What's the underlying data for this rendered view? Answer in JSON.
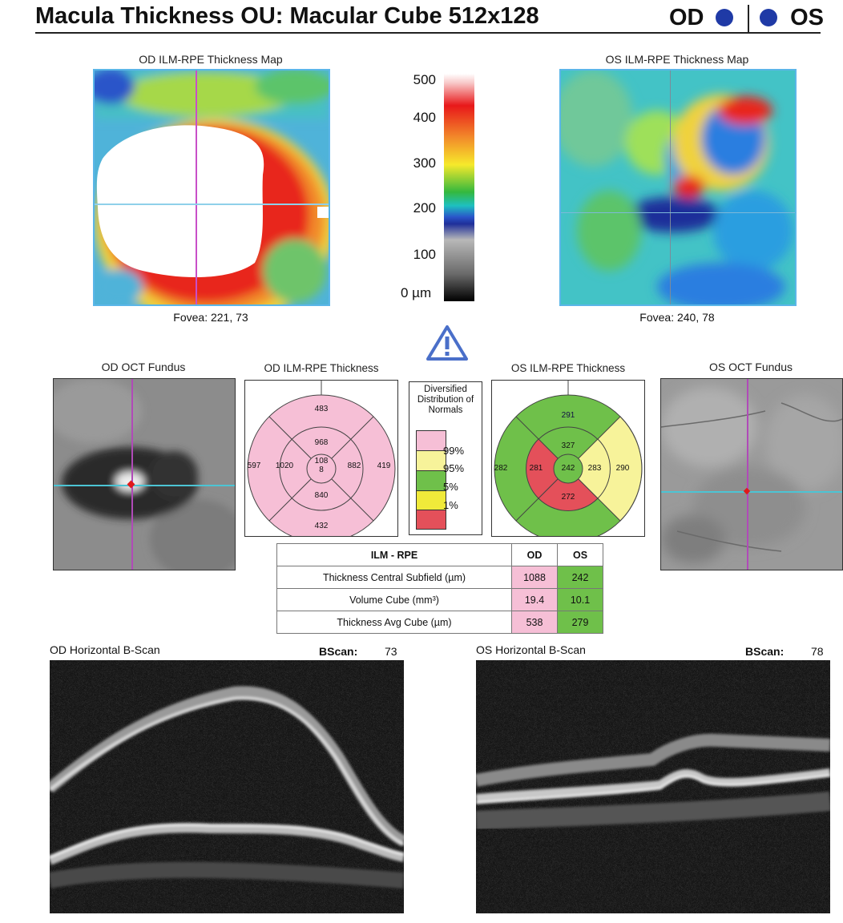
{
  "header": {
    "title": "Macula Thickness OU: Macular Cube 512x128",
    "od_label": "OD",
    "os_label": "OS"
  },
  "od_map": {
    "title": "OD ILM-RPE Thickness Map",
    "fovea": "Fovea: 221, 73"
  },
  "os_map": {
    "title": "OS ILM-RPE Thickness Map",
    "fovea": "Fovea: 240, 78"
  },
  "scale_bar": {
    "ticks": [
      "500",
      "400",
      "300",
      "200",
      "100",
      "0 µm"
    ],
    "colors": [
      "#ffffff",
      "#e8181a",
      "#f6e92b",
      "#34b83e",
      "#2a55c9",
      "#7a7a7a",
      "#000000"
    ]
  },
  "warning_icon": "warning-triangle-icon",
  "od_fundus": {
    "title": "OD OCT Fundus"
  },
  "os_fundus": {
    "title": "OS OCT Fundus"
  },
  "od_etdrs": {
    "title": "OD ILM-RPE Thickness",
    "center": "108\n8",
    "inner_superior": "968",
    "inner_nasal": "882",
    "inner_inferior": "840",
    "inner_temporal": "1020",
    "outer_superior": "483",
    "outer_nasal": "419",
    "outer_inferior": "432",
    "outer_temporal": "597",
    "colors": {
      "all": "#f6bfd6"
    }
  },
  "os_etdrs": {
    "title": "OS ILM-RPE Thickness",
    "center": "242",
    "inner_superior": "327",
    "inner_nasal": "283",
    "inner_inferior": "272",
    "inner_temporal": "281",
    "outer_superior": "291",
    "outer_nasal": "290",
    "outer_inferior": "",
    "outer_temporal": "282",
    "colors": {
      "green": "#6fc04a",
      "yellow": "#f7f39a",
      "red": "#e4505a"
    }
  },
  "legend": {
    "title": "Diversified Distribution of Normals",
    "items": [
      "99%",
      "95%",
      "5%",
      "1%"
    ],
    "colors": [
      "#f6bfd6",
      "#f7f39a",
      "#6fc04a",
      "#f0ea3a",
      "#e4505a"
    ]
  },
  "summary": {
    "headers": [
      "ILM - RPE",
      "OD",
      "OS"
    ],
    "rows": [
      {
        "label": "Thickness Central Subfield (µm)",
        "od": "1088",
        "os": "242"
      },
      {
        "label": "Volume Cube (mm³)",
        "od": "19.4",
        "os": "10.1"
      },
      {
        "label": "Thickness Avg Cube (µm)",
        "od": "538",
        "os": "279"
      }
    ],
    "od_color": "#f6bfd6",
    "os_color": "#6fc04a"
  },
  "od_bscan": {
    "title": "OD Horizontal B-Scan",
    "bscan_label": "BScan:",
    "bscan_num": "73"
  },
  "os_bscan": {
    "title": "OS Horizontal B-Scan",
    "bscan_label": "BScan:",
    "bscan_num": "78"
  }
}
